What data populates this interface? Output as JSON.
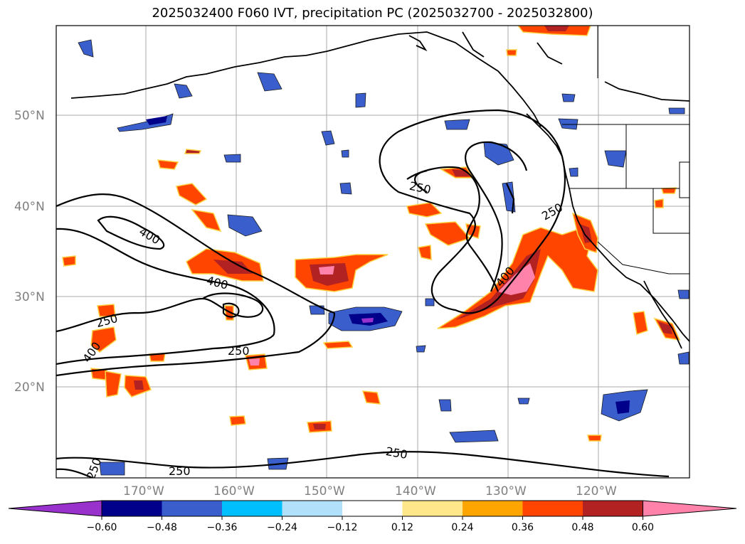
{
  "title": "2025032400 F060 IVT, precipitation PC (2025032700 - 2025032800)",
  "lat_labels": [
    "50°N",
    "40°N",
    "30°N",
    "20°N"
  ],
  "lon_labels": [
    "170°W",
    "160°W",
    "150°W",
    "140°W",
    "130°W",
    "120°W"
  ],
  "contour_labels": [
    "400",
    "400",
    "400",
    "400",
    "250",
    "250",
    "250",
    "250",
    "250",
    "250"
  ],
  "colorbar": {
    "ticks": [
      "−0.60",
      "−0.48",
      "−0.36",
      "−0.24",
      "−0.12",
      "0.12",
      "0.24",
      "0.36",
      "0.48",
      "0.60"
    ],
    "colors": [
      "#9932cc",
      "#00008b",
      "#3a5fcd",
      "#00bfff",
      "#b0e0fa",
      "#ffffff",
      "#ffe78a",
      "#ffa500",
      "#ff4500",
      "#b22222",
      "#ff82ab"
    ]
  }
}
